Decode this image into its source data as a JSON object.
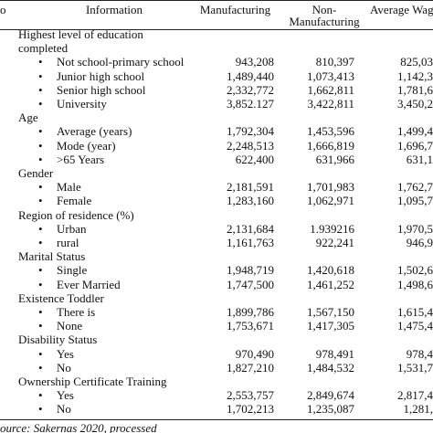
{
  "header": {
    "no": "o",
    "information": "Information",
    "manufacturing": "Manufacturing",
    "non_manufacturing": [
      "Non-",
      "Manufacturing"
    ],
    "average": "Average Wag"
  },
  "sections": [
    {
      "title_lines": [
        "Highest level of education",
        "completed"
      ],
      "rows": [
        {
          "label": "Not school-primary school",
          "values": [
            "943,208",
            "810,397",
            "825,03"
          ]
        },
        {
          "label": "Junior high school",
          "values": [
            "1,489,440",
            "1,073,413",
            "1,142,3"
          ]
        },
        {
          "label": "Senior high school",
          "values": [
            "2,332,772",
            "1,662,811",
            "1,781,6"
          ]
        },
        {
          "label": "University",
          "values": [
            "3,852.127",
            "3,422,811",
            "3,450,2"
          ]
        }
      ]
    },
    {
      "title_lines": [
        "Age"
      ],
      "rows": [
        {
          "label": "Average (years)",
          "values": [
            "1,792,304",
            "1,453,596",
            "1,499,4"
          ]
        },
        {
          "label": "Mode (year)",
          "values": [
            "2,248,513",
            "1,666,819",
            "1,696,7"
          ]
        },
        {
          "label": ">65 Years",
          "values": [
            "622,400",
            "631,966",
            "631,1"
          ]
        }
      ]
    },
    {
      "title_lines": [
        "Gender"
      ],
      "rows": [
        {
          "label": "Male",
          "values": [
            "2,181,591",
            "1,701,983",
            "1,762,7"
          ]
        },
        {
          "label": "Female",
          "values": [
            "1,283,160",
            "1,062,971",
            "1,095,7"
          ]
        }
      ]
    },
    {
      "title_lines": [
        "Region of residence (%)"
      ],
      "rows": [
        {
          "label": "Urban",
          "values": [
            "2,131,684",
            "1.939216",
            "1,970,5"
          ]
        },
        {
          "label": "rural",
          "values": [
            "1,161,763",
            "922,241",
            "946,9"
          ]
        }
      ]
    },
    {
      "title_lines": [
        "Marital Status"
      ],
      "rows": [
        {
          "label": "Single",
          "values": [
            "1,948,719",
            "1,420,618",
            "1,502,6"
          ]
        },
        {
          "label": "Ever Married",
          "values": [
            "1,747,500",
            "1,461,252",
            "1,498,6"
          ]
        }
      ]
    },
    {
      "title_lines": [
        "Existence Toddler"
      ],
      "rows": [
        {
          "label": "There is",
          "values": [
            "1,899,786",
            "1,567,150",
            "1,615,4"
          ]
        },
        {
          "label": "None",
          "values": [
            "1,753,671",
            "1,417,305",
            "1,475,4"
          ]
        }
      ]
    },
    {
      "title_lines": [
        "Disability Status"
      ],
      "rows": [
        {
          "label": "Yes",
          "values": [
            "970,490",
            "978,491",
            "978,4"
          ]
        },
        {
          "label": "No",
          "values": [
            "1,827,210",
            "1,484,532",
            "1,531,7"
          ]
        }
      ]
    },
    {
      "title_lines": [
        "Ownership Certificate Training"
      ],
      "rows": [
        {
          "label": "Yes",
          "values": [
            "2,553,757",
            "2,849,674",
            "2,817,4"
          ]
        },
        {
          "label": "No",
          "values": [
            "1,702,213",
            "1,235,087",
            "1,281,"
          ]
        }
      ]
    }
  ],
  "footer": "ource: Sakernas 2020, processed"
}
